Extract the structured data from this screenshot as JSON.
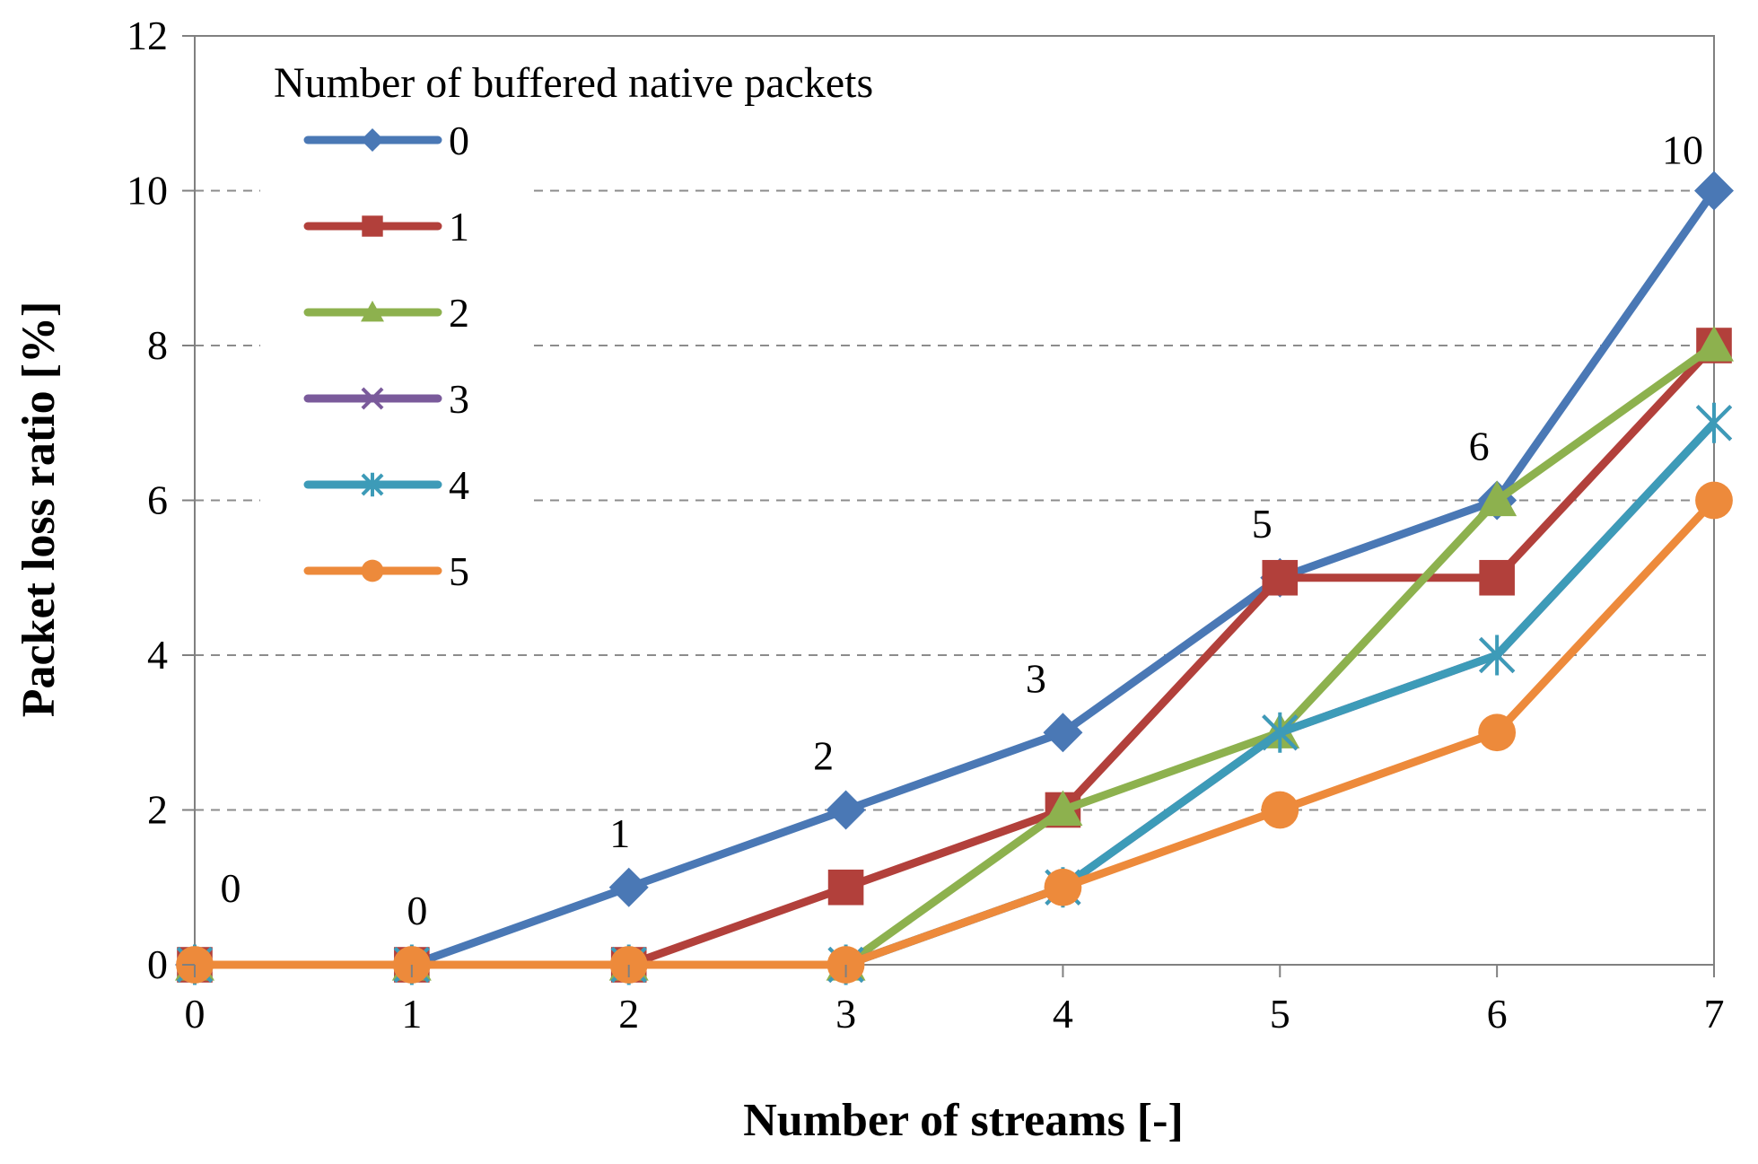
{
  "chart_data": {
    "type": "line",
    "title": "",
    "xlabel": "Number of streams [-]",
    "ylabel": "Packet loss ratio [%]",
    "x": [
      0,
      1,
      2,
      3,
      4,
      5,
      6,
      7
    ],
    "xlim": [
      0,
      7
    ],
    "ylim": [
      0,
      12
    ],
    "yticks": [
      0,
      2,
      4,
      6,
      8,
      10,
      12
    ],
    "grid": "horizontal dashed",
    "legend": {
      "title": "Number of buffered native packets",
      "placement": "top-left"
    },
    "series": [
      {
        "name": "0",
        "color": "#4A78B5",
        "marker": "diamond",
        "values": [
          0,
          0,
          1,
          2,
          3,
          5,
          6,
          10
        ]
      },
      {
        "name": "1",
        "color": "#B2403B",
        "marker": "square",
        "values": [
          0,
          0,
          0,
          1,
          2,
          5,
          5,
          8
        ]
      },
      {
        "name": "2",
        "color": "#8DB14E",
        "marker": "triangle",
        "values": [
          0,
          0,
          0,
          0,
          2,
          3,
          6,
          8
        ]
      },
      {
        "name": "3",
        "color": "#7A5A9B",
        "marker": "x",
        "values": [
          0,
          0,
          0,
          0,
          1,
          3,
          4,
          7
        ]
      },
      {
        "name": "4",
        "color": "#3D9BB8",
        "marker": "star",
        "values": [
          0,
          0,
          0,
          0,
          1,
          3,
          4,
          7
        ]
      },
      {
        "name": "5",
        "color": "#ED8A3B",
        "marker": "circle",
        "values": [
          0,
          0,
          0,
          0,
          1,
          2,
          3,
          6
        ]
      }
    ],
    "data_labels": [
      {
        "series": "0",
        "x": 0,
        "text": "0"
      },
      {
        "series": "0",
        "x": 1,
        "text": "0"
      },
      {
        "series": "0",
        "x": 2,
        "text": "1"
      },
      {
        "series": "0",
        "x": 3,
        "text": "2"
      },
      {
        "series": "0",
        "x": 4,
        "text": "3"
      },
      {
        "series": "0",
        "x": 5,
        "text": "5"
      },
      {
        "series": "0",
        "x": 6,
        "text": "6"
      },
      {
        "series": "0",
        "x": 7,
        "text": "10"
      }
    ]
  }
}
